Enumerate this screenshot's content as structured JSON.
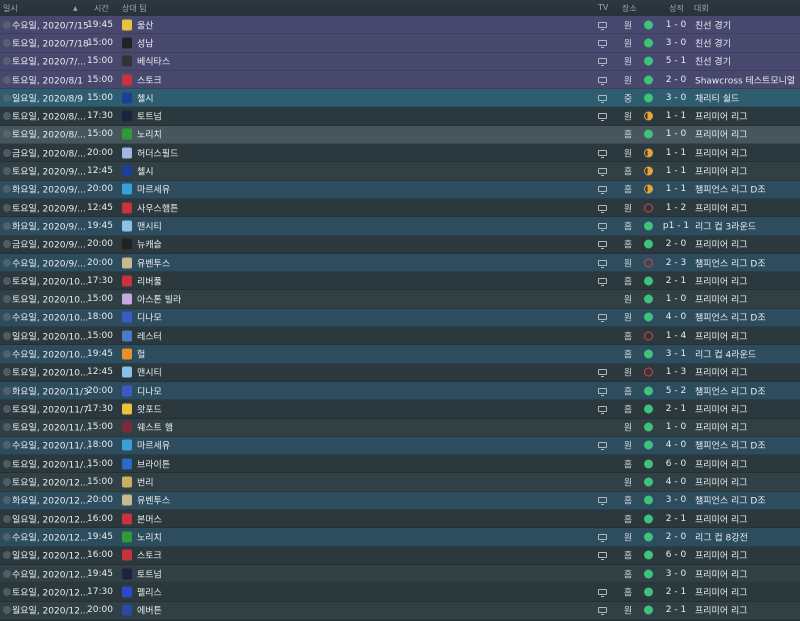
{
  "header": {
    "date": "일시",
    "sort": "▲",
    "time": "시간",
    "opponent": "상대 팀",
    "tv": "TV",
    "venue": "장소",
    "result": "성적",
    "competition": "대회"
  },
  "colors": {
    "win": "#3ec47a",
    "draw": "#e8a43a",
    "loss": "#d9443f",
    "friendly_row": "#48486e",
    "highlight_row": "#2f5d70",
    "euro_row": "#2d4c5e"
  },
  "fixtures": [
    {
      "date": "수요일, 2020/7/15",
      "time": "19:45",
      "team": "울산",
      "badge": "#e8c23a",
      "tv": true,
      "venue": "원",
      "res": "W",
      "score": "1 - 0",
      "comp": "친선 경기",
      "bg": "friendly"
    },
    {
      "date": "토요일, 2020/7/18",
      "time": "15:00",
      "team": "성남",
      "badge": "#222222",
      "tv": true,
      "venue": "원",
      "res": "W",
      "score": "3 - 0",
      "comp": "친선 경기",
      "bg": "friendly"
    },
    {
      "date": "토요일, 2020/7/...",
      "time": "15:00",
      "team": "베식타스",
      "badge": "#333333",
      "tv": true,
      "venue": "원",
      "res": "W",
      "score": "5 - 1",
      "comp": "친선 경기",
      "bg": "friendly"
    },
    {
      "date": "토요일, 2020/8/1",
      "time": "15:00",
      "team": "스토크",
      "badge": "#c8323c",
      "tv": true,
      "venue": "원",
      "res": "W",
      "score": "2 - 0",
      "comp": "Shawcross 테스트모니얼",
      "bg": "friendly"
    },
    {
      "date": "일요일, 2020/8/9",
      "time": "15:00",
      "team": "첼시",
      "badge": "#1a3f9a",
      "tv": true,
      "venue": "중",
      "res": "W",
      "score": "3 - 0",
      "comp": "채리티 쉴드",
      "bg": "highlight"
    },
    {
      "date": "토요일, 2020/8/...",
      "time": "17:30",
      "team": "토트넘",
      "badge": "#1a2440",
      "tv": true,
      "venue": "원",
      "res": "D",
      "score": "1 - 1",
      "comp": "프리미어 리그",
      "bg": "a"
    },
    {
      "date": "토요일, 2020/8/...",
      "time": "15:00",
      "team": "노리치",
      "badge": "#2e9a3a",
      "tv": false,
      "venue": "홈",
      "res": "W",
      "score": "1 - 0",
      "comp": "프리미어 리그",
      "bg": "hover"
    },
    {
      "date": "금요일, 2020/8/...",
      "time": "20:00",
      "team": "허더스필드",
      "badge": "#9fb8e0",
      "tv": true,
      "venue": "원",
      "res": "D",
      "score": "1 - 1",
      "comp": "프리미어 리그",
      "bg": "a"
    },
    {
      "date": "토요일, 2020/9/...",
      "time": "12:45",
      "team": "첼시",
      "badge": "#1a3f9a",
      "tv": true,
      "venue": "홈",
      "res": "D",
      "score": "1 - 1",
      "comp": "프리미어 리그",
      "bg": "b"
    },
    {
      "date": "화요일, 2020/9/...",
      "time": "20:00",
      "team": "마르세유",
      "badge": "#3aa0d8",
      "tv": true,
      "venue": "홈",
      "res": "D",
      "score": "1 - 1",
      "comp": "챔피언스 리그 D조",
      "bg": "euro"
    },
    {
      "date": "토요일, 2020/9/...",
      "time": "12:45",
      "team": "사우스햄튼",
      "badge": "#c8323c",
      "tv": true,
      "venue": "원",
      "res": "L",
      "score": "1 - 2",
      "comp": "프리미어 리그",
      "bg": "a"
    },
    {
      "date": "화요일, 2020/9/...",
      "time": "19:45",
      "team": "맨시티",
      "badge": "#8cc0e8",
      "tv": true,
      "venue": "홈",
      "res": "W",
      "score": "p1 - 1",
      "comp": "리그 컵 3라운드",
      "bg": "euro"
    },
    {
      "date": "금요일, 2020/9/...",
      "time": "20:00",
      "team": "뉴캐슬",
      "badge": "#222222",
      "tv": true,
      "venue": "홈",
      "res": "W",
      "score": "2 - 0",
      "comp": "프리미어 리그",
      "bg": "a"
    },
    {
      "date": "수요일, 2020/9/...",
      "time": "20:00",
      "team": "유벤투스",
      "badge": "#c8b890",
      "tv": true,
      "venue": "원",
      "res": "L",
      "score": "2 - 3",
      "comp": "챔피언스 리그 D조",
      "bg": "euro"
    },
    {
      "date": "토요일, 2020/10...",
      "time": "17:30",
      "team": "리버풀",
      "badge": "#c8323c",
      "tv": true,
      "venue": "홈",
      "res": "W",
      "score": "2 - 1",
      "comp": "프리미어 리그",
      "bg": "a"
    },
    {
      "date": "토요일, 2020/10...",
      "time": "15:00",
      "team": "아스톤 빌라",
      "badge": "#c8a8e0",
      "tv": false,
      "venue": "원",
      "res": "W",
      "score": "1 - 0",
      "comp": "프리미어 리그",
      "bg": "b"
    },
    {
      "date": "수요일, 2020/10...",
      "time": "18:00",
      "team": "디나모",
      "badge": "#3a5ac8",
      "tv": true,
      "venue": "원",
      "res": "W",
      "score": "4 - 0",
      "comp": "챔피언스 리그 D조",
      "bg": "euro"
    },
    {
      "date": "일요일, 2020/10...",
      "time": "15:00",
      "team": "레스터",
      "badge": "#4a7ac8",
      "tv": false,
      "venue": "홈",
      "res": "L",
      "score": "1 - 4",
      "comp": "프리미어 리그",
      "bg": "a"
    },
    {
      "date": "수요일, 2020/10...",
      "time": "19:45",
      "team": "헐",
      "badge": "#e8902a",
      "tv": false,
      "venue": "홈",
      "res": "W",
      "score": "3 - 1",
      "comp": "리그 컵 4라운드",
      "bg": "euro"
    },
    {
      "date": "토요일, 2020/10...",
      "time": "12:45",
      "team": "맨시티",
      "badge": "#8cc0e8",
      "tv": true,
      "venue": "원",
      "res": "L",
      "score": "1 - 3",
      "comp": "프리미어 리그",
      "bg": "a"
    },
    {
      "date": "화요일, 2020/11/3",
      "time": "20:00",
      "team": "디나모",
      "badge": "#3a5ac8",
      "tv": true,
      "venue": "홈",
      "res": "W",
      "score": "5 - 2",
      "comp": "챔피언스 리그 D조",
      "bg": "euro"
    },
    {
      "date": "토요일, 2020/11/7",
      "time": "17:30",
      "team": "왓포드",
      "badge": "#e8c23a",
      "tv": true,
      "venue": "홈",
      "res": "W",
      "score": "2 - 1",
      "comp": "프리미어 리그",
      "bg": "a"
    },
    {
      "date": "토요일, 2020/11/...",
      "time": "15:00",
      "team": "웨스트 햄",
      "badge": "#7a2a3a",
      "tv": false,
      "venue": "원",
      "res": "W",
      "score": "1 - 0",
      "comp": "프리미어 리그",
      "bg": "b"
    },
    {
      "date": "수요일, 2020/11/...",
      "time": "18:00",
      "team": "마르세유",
      "badge": "#3aa0d8",
      "tv": true,
      "venue": "원",
      "res": "W",
      "score": "4 - 0",
      "comp": "챔피언스 리그 D조",
      "bg": "euro"
    },
    {
      "date": "토요일, 2020/11/...",
      "time": "15:00",
      "team": "브라이튼",
      "badge": "#2a6ac8",
      "tv": false,
      "venue": "홈",
      "res": "W",
      "score": "6 - 0",
      "comp": "프리미어 리그",
      "bg": "a"
    },
    {
      "date": "토요일, 2020/12...",
      "time": "15:00",
      "team": "번리",
      "badge": "#c8b060",
      "tv": false,
      "venue": "원",
      "res": "W",
      "score": "4 - 0",
      "comp": "프리미어 리그",
      "bg": "b"
    },
    {
      "date": "화요일, 2020/12...",
      "time": "20:00",
      "team": "유벤투스",
      "badge": "#c8b890",
      "tv": true,
      "venue": "홈",
      "res": "W",
      "score": "3 - 0",
      "comp": "챔피언스 리그 D조",
      "bg": "euro"
    },
    {
      "date": "일요일, 2020/12...",
      "time": "16:00",
      "team": "본머스",
      "badge": "#c8323c",
      "tv": false,
      "venue": "홈",
      "res": "W",
      "score": "2 - 1",
      "comp": "프리미어 리그",
      "bg": "a"
    },
    {
      "date": "수요일, 2020/12...",
      "time": "19:45",
      "team": "노리치",
      "badge": "#2e9a3a",
      "tv": true,
      "venue": "원",
      "res": "W",
      "score": "2 - 0",
      "comp": "리그 컵 8강전",
      "bg": "euro"
    },
    {
      "date": "일요일, 2020/12...",
      "time": "16:00",
      "team": "스토크",
      "badge": "#c8323c",
      "tv": true,
      "venue": "홈",
      "res": "W",
      "score": "6 - 0",
      "comp": "프리미어 리그",
      "bg": "a"
    },
    {
      "date": "수요일, 2020/12...",
      "time": "19:45",
      "team": "토트넘",
      "badge": "#1a2440",
      "tv": false,
      "venue": "홈",
      "res": "W",
      "score": "3 - 0",
      "comp": "프리미어 리그",
      "bg": "b"
    },
    {
      "date": "토요일, 2020/12...",
      "time": "17:30",
      "team": "펠리스",
      "badge": "#2a4ac8",
      "tv": true,
      "venue": "홈",
      "res": "W",
      "score": "2 - 1",
      "comp": "프리미어 리그",
      "bg": "a"
    },
    {
      "date": "월요일, 2020/12...",
      "time": "20:00",
      "team": "에버튼",
      "badge": "#2a4aa8",
      "tv": true,
      "venue": "원",
      "res": "W",
      "score": "2 - 1",
      "comp": "프리미어 리그",
      "bg": "b"
    }
  ]
}
